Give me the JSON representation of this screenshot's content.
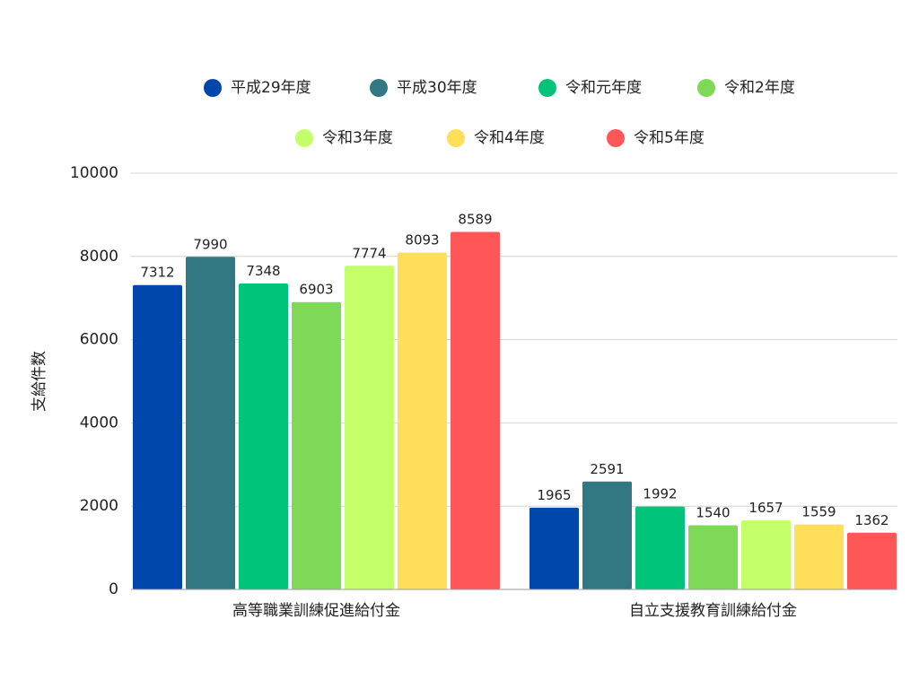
{
  "chart_data": {
    "type": "bar",
    "title": "",
    "xlabel": "",
    "ylabel": "支給件数",
    "ylim": [
      0,
      10000
    ],
    "yticks": [
      0,
      2000,
      4000,
      6000,
      8000,
      10000
    ],
    "grid": true,
    "legend_position": "top",
    "categories": [
      "高等職業訓練促進給付金",
      "自立支援教育訓練給付金"
    ],
    "series": [
      {
        "name": "平成29年度",
        "color": "#0047AB",
        "values": [
          7312,
          1965
        ]
      },
      {
        "name": "平成30年度",
        "color": "#327882",
        "values": [
          7990,
          2591
        ]
      },
      {
        "name": "令和元年度",
        "color": "#00C47A",
        "values": [
          7348,
          1992
        ]
      },
      {
        "name": "令和2年度",
        "color": "#7ED957",
        "values": [
          6903,
          1540
        ]
      },
      {
        "name": "令和3年度",
        "color": "#C3FF69",
        "values": [
          7774,
          1657
        ]
      },
      {
        "name": "令和4年度",
        "color": "#FFDE59",
        "values": [
          8093,
          1559
        ]
      },
      {
        "name": "令和5年度",
        "color": "#FF5757",
        "values": [
          8589,
          1362
        ]
      }
    ]
  }
}
